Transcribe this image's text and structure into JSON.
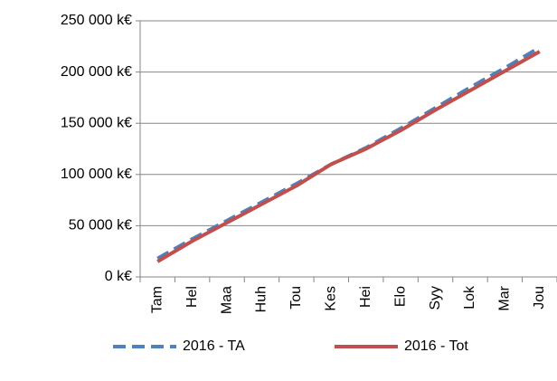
{
  "chart_data": {
    "type": "line",
    "categories": [
      "Tam",
      "Hel",
      "Maa",
      "Huh",
      "Tou",
      "Kes",
      "Hei",
      "Elo",
      "Syy",
      "Lok",
      "Mar",
      "Jou"
    ],
    "series": [
      {
        "name": "2016 - TA",
        "color": "#4f81bd",
        "dash": true,
        "values": [
          18000,
          37000,
          55000,
          73000,
          91000,
          110000,
          126000,
          145000,
          165000,
          185000,
          204000,
          224000
        ]
      },
      {
        "name": "2016 - Tot",
        "color": "#c0504d",
        "dash": false,
        "values": [
          15000,
          35000,
          53000,
          71000,
          89000,
          110000,
          125000,
          143000,
          163000,
          182000,
          201000,
          220000
        ]
      }
    ],
    "ylim": [
      0,
      250000
    ],
    "yticks": [
      {
        "value": 0,
        "label": "0 k€"
      },
      {
        "value": 50000,
        "label": "50 000 k€"
      },
      {
        "value": 100000,
        "label": "100 000 k€"
      },
      {
        "value": 150000,
        "label": "150 000 k€"
      },
      {
        "value": 200000,
        "label": "200 000 k€"
      },
      {
        "value": 250000,
        "label": "250 000 k€"
      }
    ],
    "grid": true,
    "legend": "bottom"
  }
}
